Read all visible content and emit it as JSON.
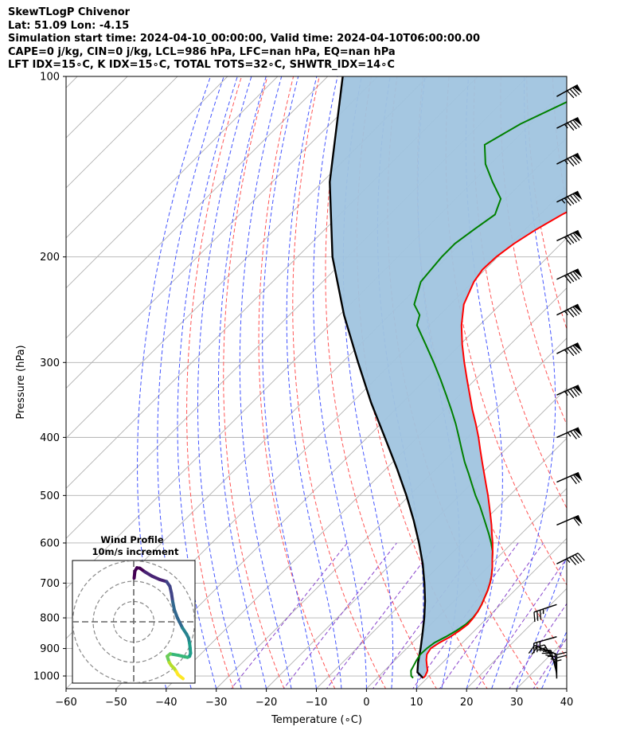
{
  "header": {
    "line1": "SkewTLogP Chivenor",
    "line2": "Lat: 51.09   Lon: -4.15",
    "line3": "Simulation start time: 2024-04-10_00:00:00, Valid time: 2024-04-10T06:00:00.00",
    "line4": "CAPE=0 j/kg, CIN=0 j/kg, LCL=986 hPa, LFC=nan hPa, EQ=nan hPa",
    "line5": "LFT IDX=15∘C, K IDX=15∘C, TOTAL TOTS=32∘C, SHWTR_IDX=14∘C"
  },
  "chart_data": {
    "type": "line",
    "title": "SkewTLogP Chivenor",
    "xlabel": "Temperature (∘C)",
    "ylabel": "Pressure (hPa)",
    "xlim": [
      -60,
      40
    ],
    "ylim": [
      1050,
      100
    ],
    "y_scale": "log",
    "x_ticks": [
      -60,
      -50,
      -40,
      -30,
      -20,
      -10,
      0,
      10,
      20,
      30,
      40
    ],
    "y_ticks": [
      100,
      200,
      300,
      400,
      500,
      600,
      700,
      800,
      900,
      1000
    ],
    "grid": true,
    "colors": {
      "temperature": "#ff0000",
      "dewpoint": "#008000",
      "parcel": "#000000",
      "cin_cape_shade": "#a0c4df",
      "dry_adiabat": "#ff5555",
      "moist_adiabat": "#4455ff",
      "mixing_ratio": "#8844cc",
      "isotherm": "#b0b0b0"
    },
    "series": [
      {
        "id": "temperature",
        "pressure": [
          1008,
          1000,
          980,
          960,
          940,
          920,
          900,
          880,
          860,
          840,
          820,
          800,
          780,
          760,
          740,
          720,
          700,
          680,
          660,
          640,
          620,
          600,
          580,
          560,
          540,
          520,
          500,
          480,
          460,
          440,
          420,
          400,
          380,
          360,
          340,
          320,
          300,
          280,
          260,
          240,
          220,
          210,
          200,
          190,
          180,
          170,
          160,
          150,
          140,
          130,
          120,
          110,
          100
        ],
        "values": [
          9.2,
          9.2,
          8.6,
          7.4,
          6.2,
          5.2,
          4.8,
          5.4,
          6.4,
          7.0,
          7.4,
          7.2,
          6.8,
          6.2,
          5.4,
          4.6,
          3.6,
          2.4,
          1.0,
          -0.6,
          -2.2,
          -3.9,
          -5.8,
          -7.7,
          -9.8,
          -12.0,
          -14.3,
          -16.8,
          -19.4,
          -22.1,
          -24.9,
          -27.8,
          -31.0,
          -34.5,
          -38.0,
          -41.7,
          -45.6,
          -49.6,
          -53.6,
          -57.3,
          -59.8,
          -60.5,
          -60.3,
          -59.4,
          -57.8,
          -55.6,
          -52.5,
          -48.0,
          -44.8,
          -44.2,
          -45.0,
          -47.0,
          -50.2
        ]
      },
      {
        "id": "dewpoint",
        "pressure": [
          1008,
          1000,
          980,
          960,
          940,
          920,
          900,
          880,
          860,
          840,
          820,
          800,
          780,
          760,
          740,
          720,
          700,
          680,
          660,
          640,
          620,
          600,
          580,
          560,
          540,
          520,
          500,
          480,
          460,
          440,
          420,
          400,
          380,
          360,
          340,
          320,
          300,
          280,
          260,
          250,
          240,
          220,
          200,
          190,
          180,
          170,
          160,
          150,
          140,
          130,
          120,
          110,
          100
        ],
        "values": [
          7.2,
          6.4,
          5.3,
          4.8,
          4.3,
          3.9,
          4.0,
          4.4,
          5.5,
          6.4,
          7.0,
          7.1,
          6.8,
          6.2,
          5.4,
          4.6,
          3.6,
          2.4,
          1.0,
          -0.6,
          -2.2,
          -4.2,
          -6.4,
          -8.8,
          -11.3,
          -13.9,
          -16.8,
          -19.6,
          -22.5,
          -25.6,
          -28.6,
          -31.7,
          -35.0,
          -38.7,
          -42.7,
          -47.0,
          -51.7,
          -56.9,
          -62.5,
          -64.0,
          -67.2,
          -70.4,
          -71.2,
          -71.2,
          -70.2,
          -69.0,
          -71.0,
          -76.0,
          -81.0,
          -85.0,
          -82.0,
          -77.0,
          -72.5
        ]
      },
      {
        "id": "parcel",
        "pressure": [
          1008,
          986,
          950,
          900,
          850,
          800,
          750,
          700,
          650,
          600,
          550,
          500,
          450,
          400,
          350,
          300,
          250,
          200,
          150,
          100
        ],
        "values": [
          9.2,
          6.9,
          5.1,
          2.8,
          0.2,
          -2.6,
          -5.8,
          -9.5,
          -13.7,
          -18.6,
          -24.2,
          -30.6,
          -38.0,
          -46.5,
          -56.2,
          -66.8,
          -79.1,
          -93.0,
          -108.5,
          -127.0
        ]
      }
    ],
    "wind_barbs": {
      "x_position_temp_c": 38,
      "pressure": [
        108,
        122,
        140,
        162,
        188,
        218,
        250,
        290,
        340,
        400,
        475,
        560,
        650,
        760,
        860,
        920,
        960,
        990,
        1005,
        1010
      ],
      "u_ms": [
        -36,
        -40,
        -40,
        -44,
        -42,
        -42,
        -40,
        -40,
        -40,
        -36,
        -32,
        -28,
        -20,
        18,
        14,
        10,
        6,
        3,
        1,
        0
      ],
      "v_ms": [
        -20,
        -20,
        -20,
        -22,
        -20,
        -20,
        -20,
        -20,
        -18,
        -16,
        -14,
        -12,
        -10,
        6,
        4,
        -4,
        -10,
        -12,
        -14,
        -12
      ]
    },
    "inset": {
      "title": "Wind Profile",
      "subtitle": "10m/s increment",
      "u_ms": [
        0.2,
        0.6,
        1.6,
        3.0,
        5.5,
        9.0,
        12.8,
        16.2,
        17.8,
        18.6,
        19.2,
        20.0,
        21.5,
        24.0,
        26.0,
        27.0,
        27.5,
        27.8,
        28.0,
        27.5,
        26.5,
        25.0,
        22.0,
        18.0,
        16.5,
        17.0,
        17.5,
        18.5,
        20.0,
        21.0,
        21.8,
        23.0,
        24.3
      ],
      "v_ms": [
        21.5,
        25.0,
        26.6,
        26.4,
        24.6,
        22.5,
        20.8,
        19.8,
        17.5,
        14.0,
        10.0,
        6.0,
        2.0,
        -3.0,
        -6.0,
        -8.0,
        -10.5,
        -13.0,
        -15.5,
        -17.0,
        -17.5,
        -17.2,
        -16.5,
        -15.8,
        -17.0,
        -18.5,
        -20.0,
        -21.5,
        -23.0,
        -24.5,
        -26.0,
        -27.0,
        -28.0
      ]
    }
  }
}
